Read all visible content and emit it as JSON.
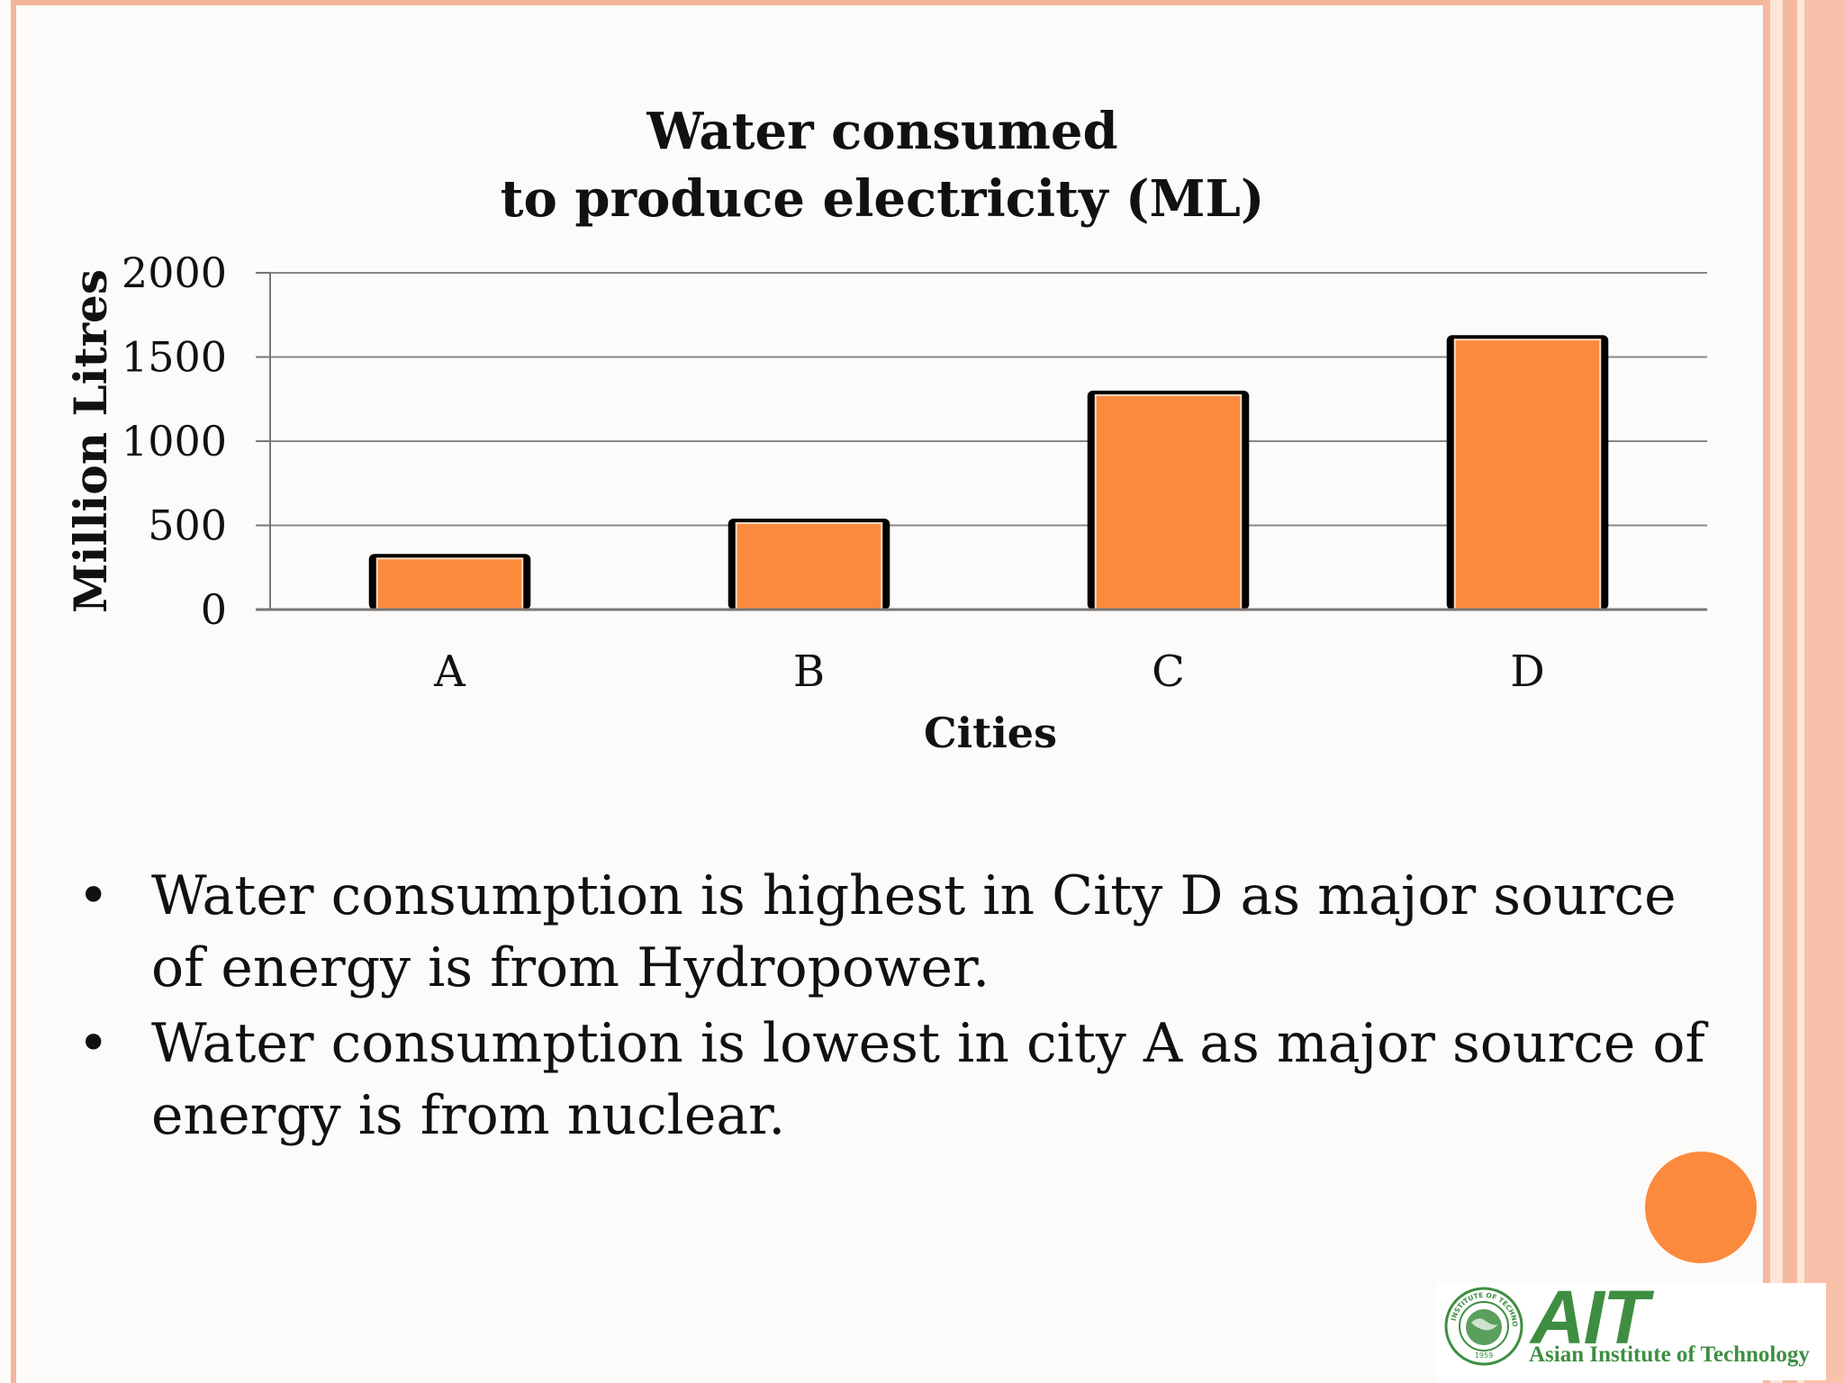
{
  "chart_data": {
    "type": "bar",
    "title_lines": [
      "Water consumed",
      "to produce electricity (ML)"
    ],
    "xlabel": "Cities",
    "ylabel": "Million  Litres",
    "categories": [
      "A",
      "B",
      "C",
      "D"
    ],
    "values": [
      330,
      540,
      1300,
      1630
    ],
    "ylim": [
      0,
      2000
    ],
    "yticks": [
      "0",
      "500",
      "1000",
      "1500",
      "2000"
    ],
    "grid": true,
    "bar_color": "#fb8a3c"
  },
  "bullets": [
    {
      "symbol": "•",
      "lines": [
        "Water consumption is highest in City D as major source",
        "of energy is from Hydropower."
      ]
    },
    {
      "symbol": "•",
      "lines": [
        "Water consumption is lowest in city A as major source of",
        "energy is from nuclear."
      ]
    }
  ],
  "logo": {
    "mark": "AIT",
    "name": "Asian Institute of Technology",
    "seal_top_text": "ASIAN INSTITUTE OF TECHNOLOGY",
    "seal_year": "1959"
  },
  "theme": {
    "accent": "#fb8a3c",
    "border": "#f4b49a",
    "logo_green": "#3e8e41"
  }
}
